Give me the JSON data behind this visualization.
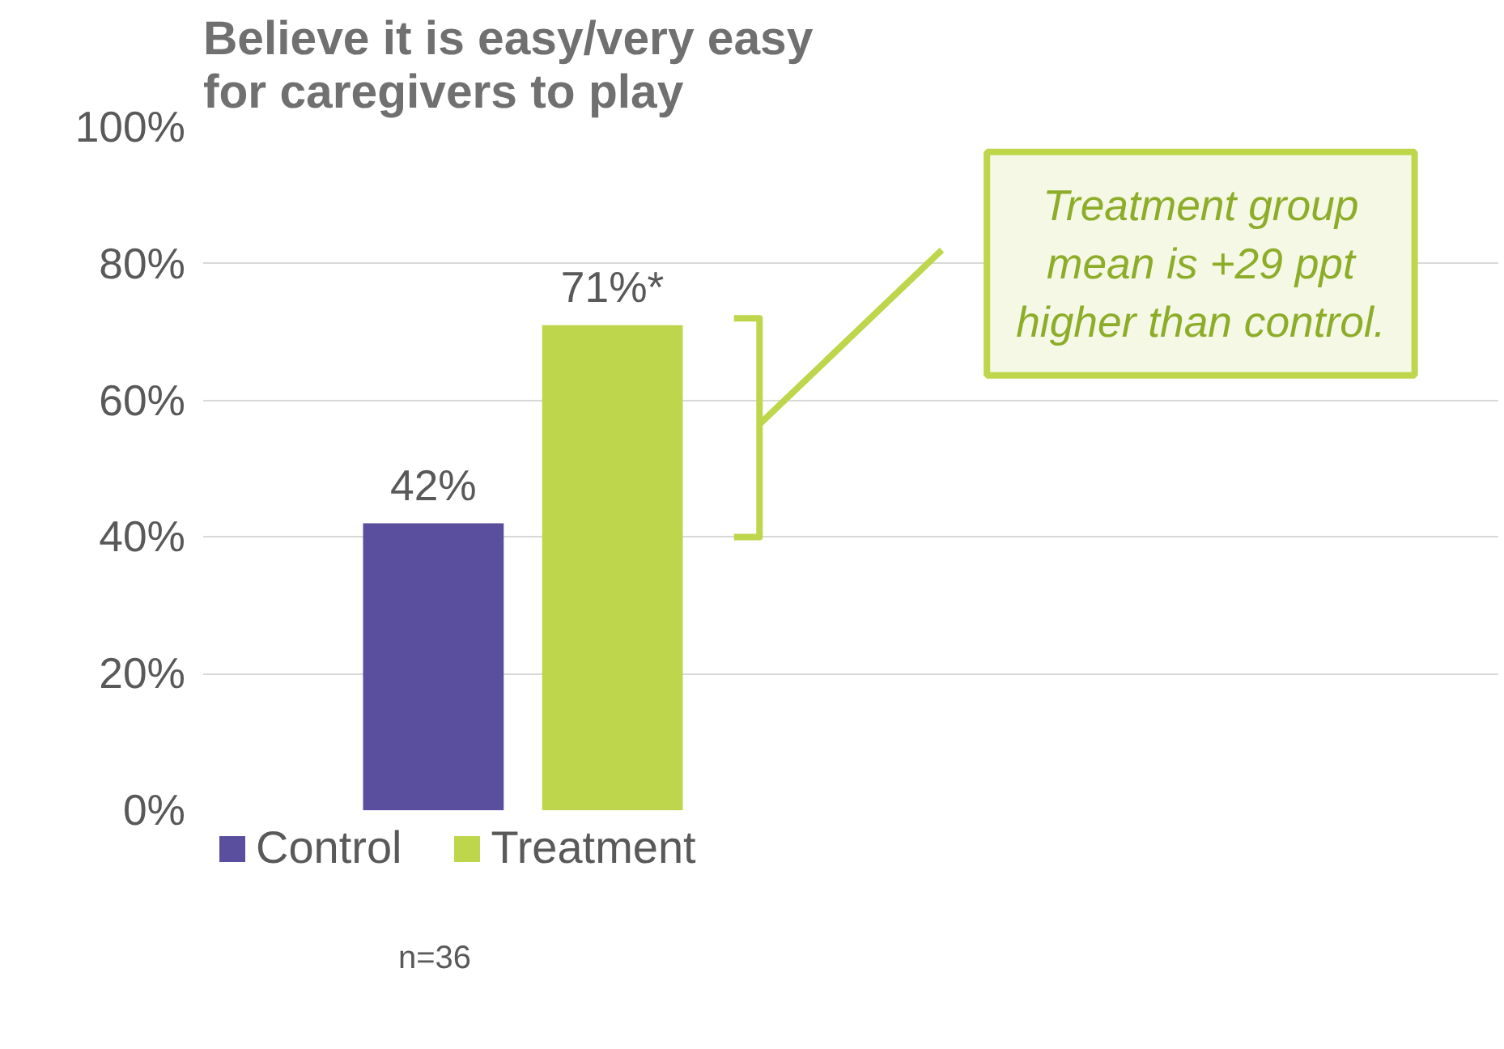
{
  "chart_data": {
    "type": "bar",
    "title": "Believe it is easy/very easy\nfor caregivers to play",
    "categories": [
      null
    ],
    "series": [
      {
        "name": "Control",
        "color": "#5a4f9e",
        "values": [
          42
        ],
        "value_labels": [
          "42%"
        ]
      },
      {
        "name": "Treatment",
        "color": "#bdd64b",
        "values": [
          71
        ],
        "value_labels": [
          "71%*"
        ]
      }
    ],
    "ylim": [
      0,
      100
    ],
    "yticks": [
      {
        "value": 0,
        "label": "0%"
      },
      {
        "value": 20,
        "label": "20%"
      },
      {
        "value": 40,
        "label": "40%"
      },
      {
        "value": 60,
        "label": "60%"
      },
      {
        "value": 80,
        "label": "80%"
      },
      {
        "value": 100,
        "label": "100%"
      }
    ],
    "grid": "y",
    "legend": "bottom",
    "annotations": [
      "Treatment group\nmean is +29 ppt\nhigher than control.",
      "n=36"
    ]
  }
}
